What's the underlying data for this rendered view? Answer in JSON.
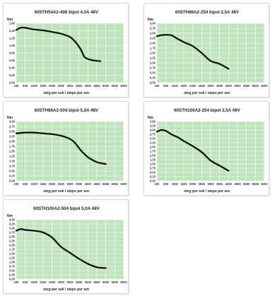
{
  "chart_data": [
    {
      "type": "line",
      "title": "60STH54A2-406 bipol 4,0A 48V",
      "ylabel": "Nm",
      "xlabel": "steg per sek / steps per sec",
      "ylim": [
        0,
        1.6
      ],
      "yticks": [
        "0,00",
        "0,20",
        "0,40",
        "0,60",
        "0,80",
        "1,00",
        "1,20",
        "1,40",
        "1,60"
      ],
      "xticks": [
        "100",
        "500",
        "1000",
        "1500",
        "2000",
        "2500",
        "3000",
        "3500",
        "4000",
        "4500",
        "5000",
        "5500",
        "6000"
      ],
      "x": [
        100,
        300,
        500,
        900,
        1500,
        2000,
        2500,
        3000,
        3300,
        3600,
        3800,
        4000,
        4300,
        4700
      ],
      "values": [
        1.42,
        1.48,
        1.48,
        1.44,
        1.41,
        1.37,
        1.32,
        1.23,
        1.1,
        0.9,
        0.7,
        0.64,
        0.6,
        0.58
      ]
    },
    {
      "type": "line",
      "title": "60STH86A2-254 bipol 2,5A 48V",
      "ylabel": "Nm",
      "xlabel": "steg per sek / steps per sec",
      "ylim": [
        0,
        3.0
      ],
      "yticks": [
        "0,00",
        "0,25",
        "0,50",
        "0,75",
        "1,00",
        "1,25",
        "1,50",
        "1,75",
        "2,00",
        "2,25",
        "2,50",
        "2,75",
        "3,00"
      ],
      "xticks": [
        "100",
        "500",
        "1000",
        "1500",
        "2000",
        "2500",
        "3000",
        "3500",
        "4000",
        "4500",
        "5000",
        "5500",
        "6000"
      ],
      "x": [
        100,
        300,
        500,
        800,
        1000,
        1500,
        2000,
        2500,
        3000,
        3500,
        4000
      ],
      "values": [
        2.35,
        2.4,
        2.42,
        2.4,
        2.3,
        2.05,
        1.85,
        1.5,
        1.1,
        0.95,
        0.7
      ]
    },
    {
      "type": "line",
      "title": "60STH86A2-504 bipol 5,0A 48V",
      "ylabel": "Nm",
      "xlabel": "steg per sek / steps per sec",
      "ylim": [
        0,
        3.0
      ],
      "yticks": [
        "0,00",
        "0,25",
        "0,50",
        "0,75",
        "1,00",
        "1,25",
        "1,50",
        "1,75",
        "2,00",
        "2,25",
        "2,50",
        "2,75",
        "3,00"
      ],
      "xticks": [
        "100",
        "500",
        "1000",
        "1500",
        "2000",
        "2500",
        "3000",
        "3500",
        "4000",
        "4500",
        "5000",
        "5500",
        "6000"
      ],
      "x": [
        100,
        500,
        1000,
        1500,
        2000,
        2500,
        3000,
        3300,
        3600,
        4000,
        4500,
        5000
      ],
      "values": [
        2.4,
        2.44,
        2.44,
        2.4,
        2.36,
        2.28,
        2.12,
        1.9,
        1.55,
        1.2,
        0.95,
        0.85
      ]
    },
    {
      "type": "line",
      "title": "60STH100A2-254 bipol 2,5A 48V",
      "ylabel": "Nm",
      "xlabel": "steg per sek / steps per sec",
      "ylim": [
        0,
        3.5
      ],
      "yticks": [
        "0,00",
        "0,25",
        "0,50",
        "0,75",
        "1,00",
        "1,25",
        "1,50",
        "1,75",
        "2,00",
        "2,25",
        "2,50",
        "2,75",
        "3,00",
        "3,25",
        "3,50"
      ],
      "xticks": [
        "100",
        "500",
        "1000",
        "1500",
        "2000",
        "2500",
        "3000",
        "3500",
        "4000",
        "4500",
        "5000",
        "5500",
        "6000"
      ],
      "x": [
        100,
        300,
        500,
        800,
        1200,
        1500,
        2000,
        2500,
        3000,
        3500,
        4000
      ],
      "values": [
        2.9,
        3.0,
        2.95,
        2.75,
        2.55,
        2.35,
        2.05,
        1.7,
        1.2,
        0.9,
        0.6
      ]
    },
    {
      "type": "line",
      "title": "60STH100A2-504 bipol 5,0A 48V",
      "ylabel": "Nm",
      "xlabel": "steg per sek / steps per sec",
      "ylim": [
        0,
        3.5
      ],
      "yticks": [
        "0,00",
        "0,25",
        "0,50",
        "0,75",
        "1,00",
        "1,25",
        "1,50",
        "1,75",
        "2,00",
        "2,25",
        "2,50",
        "2,75",
        "3,00",
        "3,25",
        "3,50"
      ],
      "xticks": [
        "100",
        "500",
        "1000",
        "1500",
        "2000",
        "2500",
        "3000",
        "3500",
        "4000",
        "4500",
        "5000",
        "5500",
        "6000"
      ],
      "x": [
        100,
        300,
        500,
        1000,
        1500,
        2000,
        2500,
        3000,
        3500,
        4000,
        4500,
        5000
      ],
      "values": [
        2.85,
        2.95,
        2.9,
        2.85,
        2.75,
        2.45,
        1.9,
        1.55,
        1.2,
        0.9,
        0.7,
        0.65
      ]
    }
  ],
  "colors": {
    "plot_bg": "#bfe3bc",
    "grid": "#ffffff",
    "curve": "#111111"
  }
}
